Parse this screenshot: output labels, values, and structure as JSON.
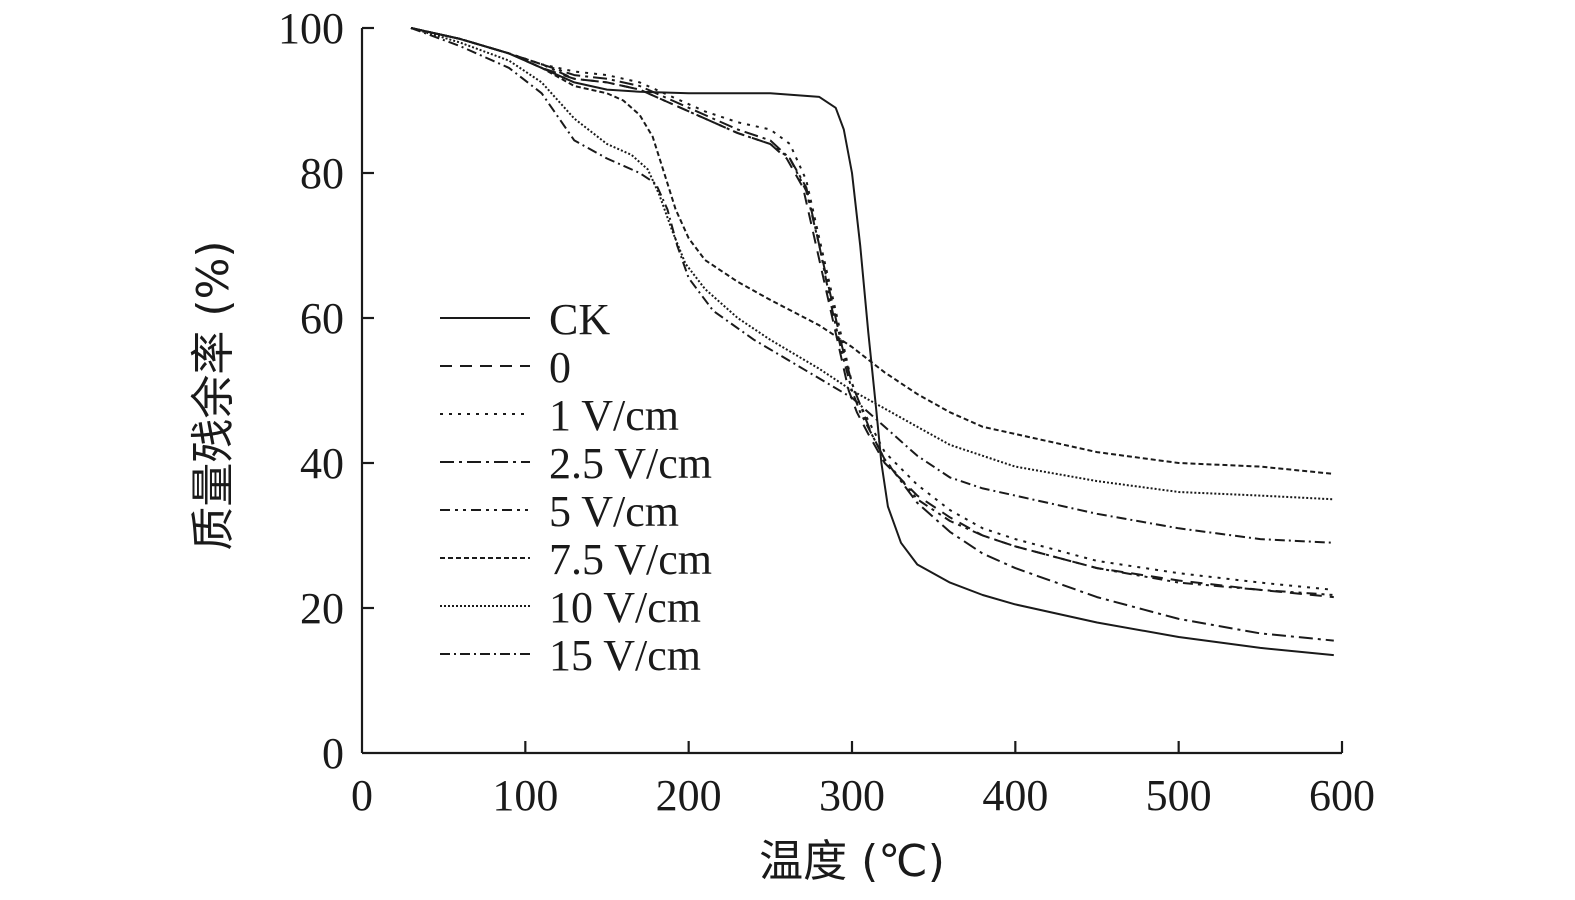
{
  "chart_data": {
    "type": "line",
    "title": "",
    "xlabel": "温度 (℃)",
    "ylabel": "质量残余率 (%)",
    "xlim": [
      0,
      600
    ],
    "ylim": [
      0,
      100
    ],
    "xticks": [
      "0",
      "100",
      "200",
      "300",
      "400",
      "500",
      "600"
    ],
    "yticks": [
      "0",
      "20",
      "40",
      "60",
      "80",
      "100"
    ],
    "grid": false,
    "legend_position": "center-left",
    "series": [
      {
        "name": "CK",
        "dash": "solid",
        "points": [
          [
            30,
            100
          ],
          [
            60,
            98.5
          ],
          [
            90,
            96.5
          ],
          [
            110,
            94.5
          ],
          [
            130,
            92.5
          ],
          [
            150,
            91.5
          ],
          [
            170,
            91.2
          ],
          [
            200,
            91
          ],
          [
            250,
            91
          ],
          [
            280,
            90.5
          ],
          [
            290,
            89
          ],
          [
            295,
            86
          ],
          [
            300,
            80
          ],
          [
            305,
            70
          ],
          [
            310,
            58
          ],
          [
            315,
            47
          ],
          [
            318,
            40
          ],
          [
            322,
            34
          ],
          [
            330,
            29
          ],
          [
            340,
            26
          ],
          [
            360,
            23.5
          ],
          [
            380,
            21.8
          ],
          [
            400,
            20.5
          ],
          [
            450,
            18
          ],
          [
            500,
            16
          ],
          [
            550,
            14.5
          ],
          [
            595,
            13.5
          ]
        ]
      },
      {
        "name": "0",
        "dash": "12,8",
        "points": [
          [
            30,
            100
          ],
          [
            60,
            98.5
          ],
          [
            90,
            96.5
          ],
          [
            110,
            94.5
          ],
          [
            130,
            93
          ],
          [
            150,
            92.5
          ],
          [
            170,
            91.5
          ],
          [
            190,
            89.5
          ],
          [
            210,
            87.5
          ],
          [
            230,
            85.5
          ],
          [
            250,
            84
          ],
          [
            260,
            82
          ],
          [
            270,
            78
          ],
          [
            278,
            70
          ],
          [
            285,
            63
          ],
          [
            292,
            56
          ],
          [
            298,
            50
          ],
          [
            303,
            47
          ],
          [
            310,
            44
          ],
          [
            320,
            40
          ],
          [
            340,
            35.5
          ],
          [
            360,
            32.5
          ],
          [
            380,
            30
          ],
          [
            400,
            28.5
          ],
          [
            450,
            25.5
          ],
          [
            500,
            23.8
          ],
          [
            550,
            22.5
          ],
          [
            595,
            21.5
          ]
        ]
      },
      {
        "name": "1 V/cm",
        "dash": "3,6",
        "points": [
          [
            30,
            100
          ],
          [
            60,
            98.5
          ],
          [
            90,
            96.5
          ],
          [
            110,
            95
          ],
          [
            130,
            94
          ],
          [
            150,
            93.5
          ],
          [
            170,
            92.5
          ],
          [
            190,
            90.5
          ],
          [
            210,
            88.5
          ],
          [
            230,
            87
          ],
          [
            250,
            86
          ],
          [
            262,
            84
          ],
          [
            272,
            79
          ],
          [
            280,
            71
          ],
          [
            287,
            64
          ],
          [
            294,
            57
          ],
          [
            300,
            51
          ],
          [
            305,
            48
          ],
          [
            312,
            45
          ],
          [
            320,
            41.5
          ],
          [
            340,
            37
          ],
          [
            360,
            33.5
          ],
          [
            380,
            31
          ],
          [
            400,
            29.5
          ],
          [
            450,
            26.5
          ],
          [
            500,
            24.8
          ],
          [
            550,
            23.5
          ],
          [
            595,
            22.5
          ]
        ]
      },
      {
        "name": "2.5 V/cm",
        "dash": "14,5,3,5",
        "points": [
          [
            30,
            100
          ],
          [
            60,
            98.5
          ],
          [
            90,
            96.5
          ],
          [
            110,
            95
          ],
          [
            130,
            93.5
          ],
          [
            150,
            93
          ],
          [
            170,
            92
          ],
          [
            190,
            90
          ],
          [
            210,
            88
          ],
          [
            230,
            86
          ],
          [
            250,
            84.5
          ],
          [
            262,
            82
          ],
          [
            272,
            78
          ],
          [
            280,
            70
          ],
          [
            287,
            63
          ],
          [
            294,
            56
          ],
          [
            300,
            51
          ],
          [
            305,
            48
          ],
          [
            312,
            44
          ],
          [
            320,
            40.5
          ],
          [
            340,
            34.5
          ],
          [
            360,
            30.5
          ],
          [
            380,
            27.5
          ],
          [
            400,
            25.5
          ],
          [
            450,
            21.5
          ],
          [
            500,
            18.5
          ],
          [
            550,
            16.5
          ],
          [
            595,
            15.5
          ]
        ]
      },
      {
        "name": "5 V/cm",
        "dash": "10,5,3,5,3,5",
        "points": [
          [
            30,
            100
          ],
          [
            60,
            98.5
          ],
          [
            90,
            96.5
          ],
          [
            110,
            95
          ],
          [
            130,
            93
          ],
          [
            150,
            92.5
          ],
          [
            170,
            91.5
          ],
          [
            190,
            89.5
          ],
          [
            210,
            87.5
          ],
          [
            230,
            85.5
          ],
          [
            250,
            84
          ],
          [
            262,
            82
          ],
          [
            272,
            77.5
          ],
          [
            280,
            70
          ],
          [
            287,
            62
          ],
          [
            294,
            55
          ],
          [
            300,
            50
          ],
          [
            305,
            47
          ],
          [
            312,
            44
          ],
          [
            320,
            40.5
          ],
          [
            340,
            35
          ],
          [
            360,
            32
          ],
          [
            380,
            30
          ],
          [
            400,
            28.5
          ],
          [
            450,
            25.5
          ],
          [
            500,
            23.5
          ],
          [
            550,
            22.5
          ],
          [
            595,
            21.8
          ]
        ]
      },
      {
        "name": "7.5 V/cm",
        "dash": "5,3",
        "points": [
          [
            30,
            100
          ],
          [
            60,
            98.5
          ],
          [
            90,
            96.5
          ],
          [
            110,
            94.5
          ],
          [
            130,
            92
          ],
          [
            150,
            91
          ],
          [
            160,
            90
          ],
          [
            170,
            88
          ],
          [
            178,
            85
          ],
          [
            185,
            80
          ],
          [
            192,
            75
          ],
          [
            200,
            71
          ],
          [
            210,
            68
          ],
          [
            230,
            65
          ],
          [
            250,
            62.5
          ],
          [
            280,
            59
          ],
          [
            300,
            56
          ],
          [
            320,
            52.5
          ],
          [
            340,
            49.5
          ],
          [
            360,
            47
          ],
          [
            380,
            45
          ],
          [
            400,
            44
          ],
          [
            450,
            41.5
          ],
          [
            500,
            40
          ],
          [
            550,
            39.5
          ],
          [
            595,
            38.5
          ]
        ]
      },
      {
        "name": "10 V/cm",
        "dash": "2,2",
        "points": [
          [
            30,
            100
          ],
          [
            60,
            98
          ],
          [
            90,
            95.5
          ],
          [
            110,
            92.5
          ],
          [
            130,
            87.5
          ],
          [
            150,
            84
          ],
          [
            165,
            82.5
          ],
          [
            175,
            80.5
          ],
          [
            182,
            77
          ],
          [
            190,
            72
          ],
          [
            198,
            67.5
          ],
          [
            210,
            64
          ],
          [
            230,
            60
          ],
          [
            250,
            57
          ],
          [
            280,
            53
          ],
          [
            300,
            50
          ],
          [
            320,
            47.5
          ],
          [
            340,
            45
          ],
          [
            360,
            42.5
          ],
          [
            380,
            41
          ],
          [
            400,
            39.5
          ],
          [
            450,
            37.5
          ],
          [
            500,
            36
          ],
          [
            550,
            35.5
          ],
          [
            595,
            35
          ]
        ]
      },
      {
        "name": "15 V/cm",
        "dash": "10,4,2,4",
        "points": [
          [
            30,
            100
          ],
          [
            60,
            97.5
          ],
          [
            90,
            94.5
          ],
          [
            110,
            91
          ],
          [
            130,
            84.5
          ],
          [
            150,
            82
          ],
          [
            170,
            80
          ],
          [
            180,
            78.5
          ],
          [
            187,
            75
          ],
          [
            193,
            70
          ],
          [
            200,
            65.5
          ],
          [
            215,
            61
          ],
          [
            240,
            57
          ],
          [
            270,
            53
          ],
          [
            300,
            49
          ],
          [
            320,
            45
          ],
          [
            340,
            41
          ],
          [
            360,
            38
          ],
          [
            380,
            36.5
          ],
          [
            400,
            35.5
          ],
          [
            450,
            33
          ],
          [
            500,
            31
          ],
          [
            550,
            29.5
          ],
          [
            595,
            29
          ]
        ]
      }
    ]
  }
}
